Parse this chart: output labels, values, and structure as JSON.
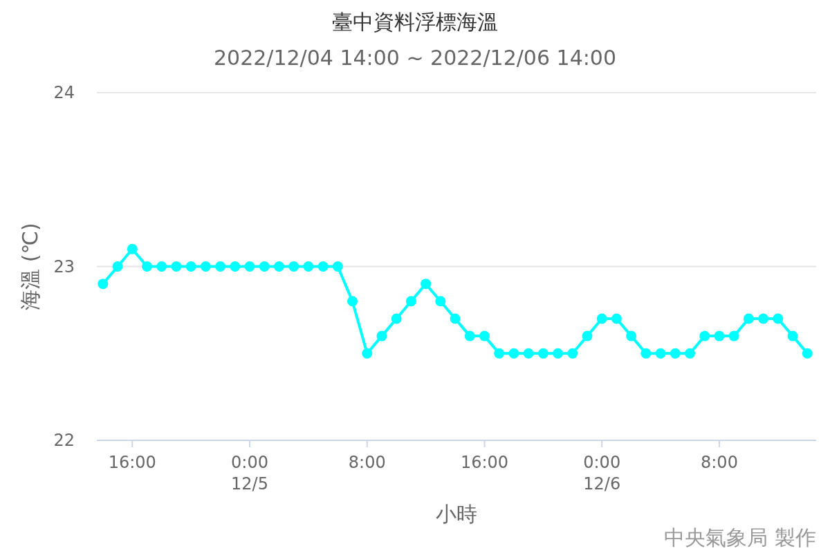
{
  "chart_data": {
    "type": "line",
    "title": "臺中資料浮標海溫",
    "subtitle": "2022/12/04 14:00 ~ 2022/12/06 14:00",
    "xlabel": "小時",
    "ylabel": "海溫 (℃)",
    "annotations": [
      "中央氣象局 製作"
    ],
    "x": [
      "2022-12-04T14:00",
      "2022-12-04T15:00",
      "2022-12-04T16:00",
      "2022-12-04T17:00",
      "2022-12-04T18:00",
      "2022-12-04T19:00",
      "2022-12-04T20:00",
      "2022-12-04T21:00",
      "2022-12-04T22:00",
      "2022-12-04T23:00",
      "2022-12-05T00:00",
      "2022-12-05T01:00",
      "2022-12-05T02:00",
      "2022-12-05T03:00",
      "2022-12-05T04:00",
      "2022-12-05T05:00",
      "2022-12-05T06:00",
      "2022-12-05T07:00",
      "2022-12-05T08:00",
      "2022-12-05T09:00",
      "2022-12-05T10:00",
      "2022-12-05T11:00",
      "2022-12-05T12:00",
      "2022-12-05T13:00",
      "2022-12-05T14:00",
      "2022-12-05T15:00",
      "2022-12-05T16:00",
      "2022-12-05T17:00",
      "2022-12-05T18:00",
      "2022-12-05T19:00",
      "2022-12-05T20:00",
      "2022-12-05T21:00",
      "2022-12-05T22:00",
      "2022-12-05T23:00",
      "2022-12-06T00:00",
      "2022-12-06T01:00",
      "2022-12-06T02:00",
      "2022-12-06T03:00",
      "2022-12-06T04:00",
      "2022-12-06T05:00",
      "2022-12-06T06:00",
      "2022-12-06T07:00",
      "2022-12-06T08:00",
      "2022-12-06T09:00",
      "2022-12-06T10:00",
      "2022-12-06T11:00",
      "2022-12-06T12:00",
      "2022-12-06T13:00",
      "2022-12-06T14:00"
    ],
    "values": [
      22.9,
      23.0,
      23.1,
      23.0,
      23.0,
      23.0,
      23.0,
      23.0,
      23.0,
      23.0,
      23.0,
      23.0,
      23.0,
      23.0,
      23.0,
      23.0,
      23.0,
      22.8,
      22.5,
      22.6,
      22.7,
      22.8,
      22.9,
      22.8,
      22.7,
      22.6,
      22.6,
      22.5,
      22.5,
      22.5,
      22.5,
      22.5,
      22.5,
      22.6,
      22.7,
      22.7,
      22.6,
      22.5,
      22.5,
      22.5,
      22.5,
      22.6,
      22.6,
      22.6,
      22.7,
      22.7,
      22.7,
      22.6,
      22.5
    ],
    "color": "#00ffff",
    "marker": "circle",
    "grid": "y",
    "xlim": [
      "2022-12-04T13:35",
      "2022-12-06T14:36"
    ],
    "ylim": [
      22,
      24
    ],
    "yticks": [
      22,
      23,
      24
    ],
    "xticks": [
      {
        "value": "2022-12-04T16:00",
        "label": "16:00"
      },
      {
        "value": "2022-12-05T00:00",
        "label": "0:00\n12/5"
      },
      {
        "value": "2022-12-05T08:00",
        "label": "8:00"
      },
      {
        "value": "2022-12-05T16:00",
        "label": "16:00"
      },
      {
        "value": "2022-12-06T00:00",
        "label": "0:00\n12/6"
      },
      {
        "value": "2022-12-06T08:00",
        "label": "8:00"
      }
    ]
  }
}
